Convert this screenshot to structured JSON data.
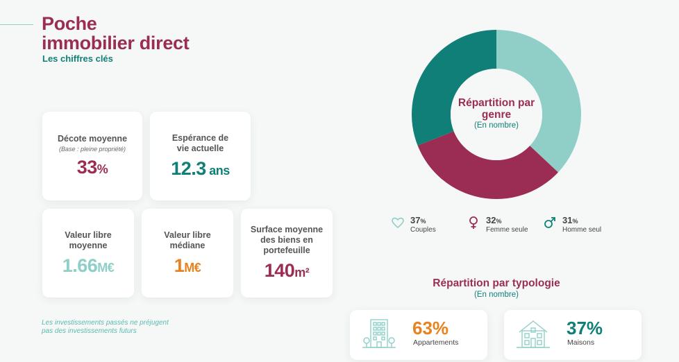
{
  "header": {
    "title_line1": "Poche",
    "title_line2": "immobilier direct",
    "subtitle": "Les chiffres clés"
  },
  "kpis": [
    {
      "label_l1": "Décote moyenne",
      "label_l2": "",
      "label_l3": "",
      "note": "(Base : pleine propriété)",
      "value": "33",
      "unit": "%",
      "color": "#9b2d55"
    },
    {
      "label_l1": "Espérance de",
      "label_l2": "vie actuelle",
      "label_l3": "",
      "note": "",
      "value": "12.3",
      "unit": " ans",
      "color": "#0f7f77"
    },
    {
      "label_l1": "Valeur libre",
      "label_l2": "moyenne",
      "label_l3": "",
      "note": "",
      "value": "1.66",
      "unit": "M€",
      "color": "#8fcfc8"
    },
    {
      "label_l1": "Valeur libre",
      "label_l2": "médiane",
      "label_l3": "",
      "note": "",
      "value": "1",
      "unit": "M€",
      "color": "#e8821e"
    },
    {
      "label_l1": "Surface moyenne",
      "label_l2": "des biens en",
      "label_l3": "portefeuille",
      "note": "",
      "value": "140",
      "unit": "m²",
      "color": "#9b2d55"
    }
  ],
  "disclaimer": "Les investissements passés ne préjugent pas des investissements futurs",
  "chart_data": {
    "type": "pie",
    "title": "Répartition par genre",
    "subtitle": "(En nombre)",
    "slices": [
      {
        "label": "Couples",
        "value": 37,
        "color": "#8fcfc8",
        "icon": "heart-icon"
      },
      {
        "label": "Femme seule",
        "value": 32,
        "color": "#9b2d55",
        "icon": "female-symbol-icon"
      },
      {
        "label": "Homme seul",
        "value": 31,
        "color": "#0f7f77",
        "icon": "male-symbol-icon"
      }
    ],
    "pct_sign": "%"
  },
  "typology": {
    "title": "Répartition par typologie",
    "subtitle": "(En nombre)",
    "items": [
      {
        "pct": "63%",
        "label": "Appartements",
        "color": "#e8821e",
        "icon": "apartment-building-icon"
      },
      {
        "pct": "37%",
        "label": "Maisons",
        "color": "#0f7f77",
        "icon": "house-icon"
      }
    ]
  }
}
